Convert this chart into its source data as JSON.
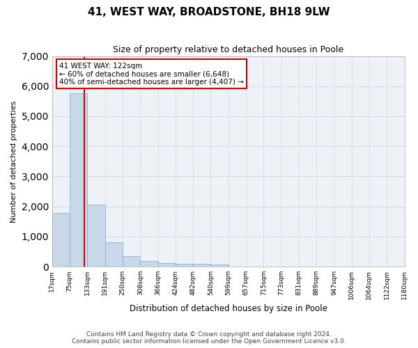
{
  "title": "41, WEST WAY, BROADSTONE, BH18 9LW",
  "subtitle": "Size of property relative to detached houses in Poole",
  "xlabel": "Distribution of detached houses by size in Poole",
  "ylabel": "Number of detached properties",
  "footnote1": "Contains HM Land Registry data © Crown copyright and database right 2024.",
  "footnote2": "Contains public sector information licensed under the Open Government Licence v3.0.",
  "property_size": 122,
  "property_label": "41 WEST WAY: 122sqm",
  "annotation_line1": "← 60% of detached houses are smaller (6,648)",
  "annotation_line2": "40% of semi-detached houses are larger (4,407) →",
  "bar_color": "#c8d8e8",
  "bar_edge_color": "#7aaac8",
  "vline_color": "#cc0000",
  "annotation_box_color": "#cc0000",
  "grid_color": "#d0d8e0",
  "bg_color": "#eef2f7",
  "bins": [
    17,
    75,
    133,
    191,
    250,
    308,
    366,
    424,
    482,
    540,
    599,
    657,
    715,
    773,
    831,
    889,
    947,
    1006,
    1064,
    1122,
    1180
  ],
  "bin_labels": [
    "17sqm",
    "75sqm",
    "133sqm",
    "191sqm",
    "250sqm",
    "308sqm",
    "366sqm",
    "424sqm",
    "482sqm",
    "540sqm",
    "599sqm",
    "657sqm",
    "715sqm",
    "773sqm",
    "831sqm",
    "889sqm",
    "947sqm",
    "1006sqm",
    "1064sqm",
    "1122sqm",
    "1180sqm"
  ],
  "counts": [
    1780,
    5760,
    2060,
    820,
    340,
    195,
    115,
    105,
    95,
    70,
    0,
    0,
    0,
    0,
    0,
    0,
    0,
    0,
    0,
    0
  ],
  "ylim": [
    0,
    7000
  ],
  "yticks": [
    0,
    1000,
    2000,
    3000,
    4000,
    5000,
    6000,
    7000
  ]
}
